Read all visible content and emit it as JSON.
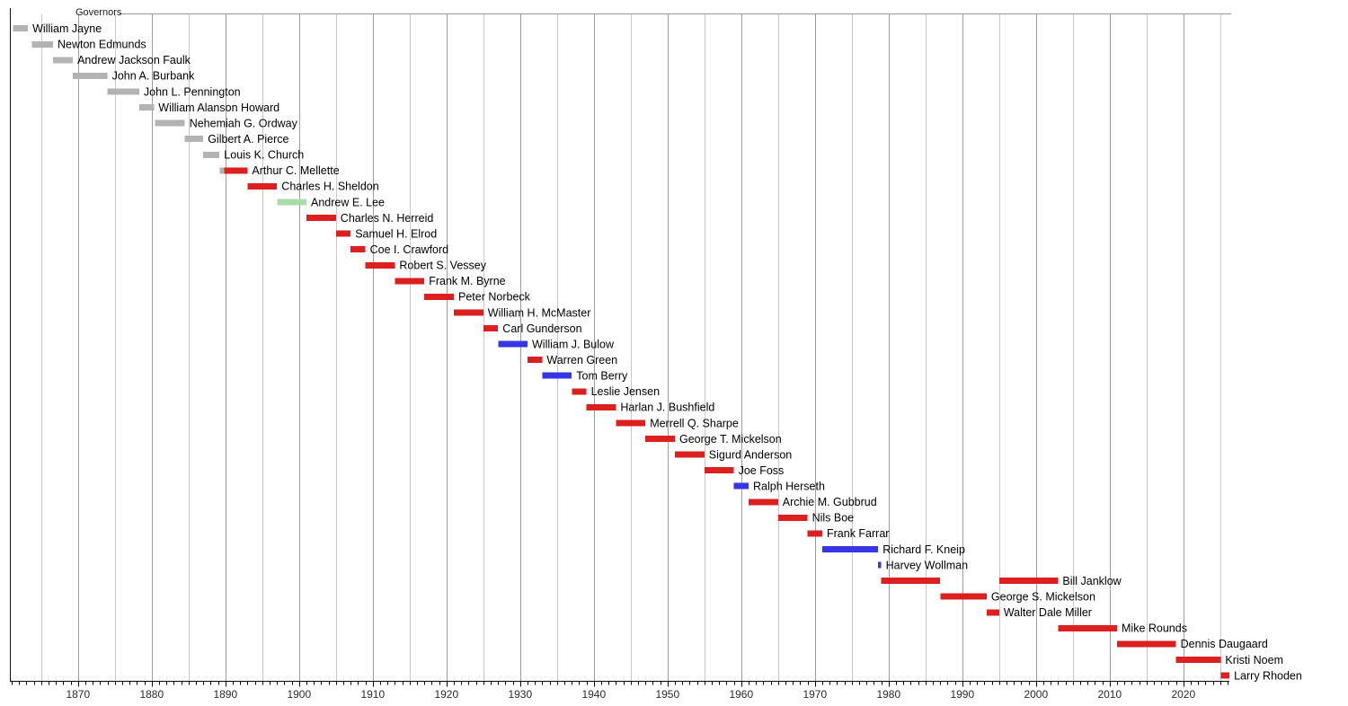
{
  "chart_data": {
    "type": "timeline",
    "title": "Governors",
    "grid": "on",
    "legend_position": "none",
    "x_axis": {
      "start": 1860.75,
      "end": 2026.25,
      "tick_interval": 1,
      "gridline_interval": 5,
      "tick_labels": [
        1870,
        1880,
        1890,
        1900,
        1910,
        1920,
        1930,
        1940,
        1950,
        1960,
        1970,
        1980,
        1990,
        2000,
        2010,
        2020
      ]
    },
    "colors": {
      "territorial": "#b3b3b3",
      "republican": "#dc2020",
      "democratic": "#3636e3",
      "populist": "#abdbab",
      "grid_minor": "#c9c9c9",
      "grid_major": "#9d9d9d",
      "top_rule": "#999999",
      "axis": "#000000",
      "axis_label_text": "#2b2b2b",
      "bar_label_text": "#000000"
    },
    "governors": [
      {
        "name": "William Jayne",
        "segments": [
          {
            "start": 1861.2,
            "end": 1863.2,
            "party": "territorial"
          }
        ]
      },
      {
        "name": "Newton Edmunds",
        "segments": [
          {
            "start": 1863.75,
            "end": 1866.6,
            "party": "territorial"
          }
        ]
      },
      {
        "name": "Andrew Jackson Faulk",
        "segments": [
          {
            "start": 1866.6,
            "end": 1869.3,
            "party": "territorial"
          }
        ]
      },
      {
        "name": "John A. Burbank",
        "segments": [
          {
            "start": 1869.3,
            "end": 1874.0,
            "party": "territorial"
          }
        ]
      },
      {
        "name": "John L. Pennington",
        "segments": [
          {
            "start": 1874.0,
            "end": 1878.3,
            "party": "territorial"
          }
        ]
      },
      {
        "name": "William Alanson Howard",
        "segments": [
          {
            "start": 1878.3,
            "end": 1880.3,
            "party": "territorial"
          }
        ]
      },
      {
        "name": "Nehemiah G. Ordway",
        "segments": [
          {
            "start": 1880.45,
            "end": 1884.5,
            "party": "territorial"
          }
        ]
      },
      {
        "name": "Gilbert A. Pierce",
        "segments": [
          {
            "start": 1884.5,
            "end": 1887.0,
            "party": "territorial"
          }
        ]
      },
      {
        "name": "Louis K. Church",
        "segments": [
          {
            "start": 1887.0,
            "end": 1889.2,
            "party": "territorial"
          }
        ]
      },
      {
        "name": "Arthur C. Mellette",
        "segments": [
          {
            "start": 1889.2,
            "end": 1889.85,
            "party": "territorial"
          },
          {
            "start": 1889.85,
            "end": 1893.0,
            "party": "republican"
          }
        ]
      },
      {
        "name": "Charles H. Sheldon",
        "segments": [
          {
            "start": 1893.0,
            "end": 1897.0,
            "party": "republican"
          }
        ]
      },
      {
        "name": "Andrew E. Lee",
        "segments": [
          {
            "start": 1897.0,
            "end": 1901.0,
            "party": "populist"
          }
        ]
      },
      {
        "name": "Charles N. Herreid",
        "segments": [
          {
            "start": 1901.0,
            "end": 1905.0,
            "party": "republican"
          }
        ]
      },
      {
        "name": "Samuel H. Elrod",
        "segments": [
          {
            "start": 1905.0,
            "end": 1907.0,
            "party": "republican"
          }
        ]
      },
      {
        "name": "Coe I. Crawford",
        "segments": [
          {
            "start": 1907.0,
            "end": 1909.0,
            "party": "republican"
          }
        ]
      },
      {
        "name": "Robert S. Vessey",
        "segments": [
          {
            "start": 1909.0,
            "end": 1913.0,
            "party": "republican"
          }
        ]
      },
      {
        "name": "Frank M. Byrne",
        "segments": [
          {
            "start": 1913.0,
            "end": 1917.0,
            "party": "republican"
          }
        ]
      },
      {
        "name": "Peter Norbeck",
        "segments": [
          {
            "start": 1917.0,
            "end": 1921.0,
            "party": "republican"
          }
        ]
      },
      {
        "name": "William H. McMaster",
        "segments": [
          {
            "start": 1921.0,
            "end": 1925.0,
            "party": "republican"
          }
        ]
      },
      {
        "name": "Carl Gunderson",
        "segments": [
          {
            "start": 1925.0,
            "end": 1927.0,
            "party": "republican"
          }
        ]
      },
      {
        "name": "William J. Bulow",
        "segments": [
          {
            "start": 1927.0,
            "end": 1931.0,
            "party": "democratic"
          }
        ]
      },
      {
        "name": "Warren Green",
        "segments": [
          {
            "start": 1931.0,
            "end": 1933.0,
            "party": "republican"
          }
        ]
      },
      {
        "name": "Tom Berry",
        "segments": [
          {
            "start": 1933.0,
            "end": 1937.0,
            "party": "democratic"
          }
        ]
      },
      {
        "name": "Leslie Jensen",
        "segments": [
          {
            "start": 1937.0,
            "end": 1939.0,
            "party": "republican"
          }
        ]
      },
      {
        "name": "Harlan J. Bushfield",
        "segments": [
          {
            "start": 1939.0,
            "end": 1943.0,
            "party": "republican"
          }
        ]
      },
      {
        "name": "Merrell Q. Sharpe",
        "segments": [
          {
            "start": 1943.0,
            "end": 1947.0,
            "party": "republican"
          }
        ]
      },
      {
        "name": "George T. Mickelson",
        "segments": [
          {
            "start": 1947.0,
            "end": 1951.0,
            "party": "republican"
          }
        ]
      },
      {
        "name": "Sigurd Anderson",
        "segments": [
          {
            "start": 1951.0,
            "end": 1955.0,
            "party": "republican"
          }
        ]
      },
      {
        "name": "Joe Foss",
        "segments": [
          {
            "start": 1955.0,
            "end": 1959.0,
            "party": "republican"
          }
        ]
      },
      {
        "name": "Ralph Herseth",
        "segments": [
          {
            "start": 1959.0,
            "end": 1961.0,
            "party": "democratic"
          }
        ]
      },
      {
        "name": "Archie M. Gubbrud",
        "segments": [
          {
            "start": 1961.0,
            "end": 1965.0,
            "party": "republican"
          }
        ]
      },
      {
        "name": "Nils Boe",
        "segments": [
          {
            "start": 1965.0,
            "end": 1969.0,
            "party": "republican"
          }
        ]
      },
      {
        "name": "Frank Farrar",
        "segments": [
          {
            "start": 1969.0,
            "end": 1971.0,
            "party": "republican"
          }
        ]
      },
      {
        "name": "Richard F. Kneip",
        "segments": [
          {
            "start": 1971.0,
            "end": 1978.58,
            "party": "democratic"
          }
        ]
      },
      {
        "name": "Harvey Wollman",
        "segments": [
          {
            "start": 1978.58,
            "end": 1979.0,
            "party": "democratic"
          }
        ]
      },
      {
        "name": "Bill Janklow",
        "segments": [
          {
            "start": 1979.0,
            "end": 1987.0,
            "party": "republican"
          },
          {
            "start": 1995.0,
            "end": 2003.0,
            "party": "republican"
          }
        ]
      },
      {
        "name": "George S. Mickelson",
        "segments": [
          {
            "start": 1987.0,
            "end": 1993.3,
            "party": "republican"
          }
        ]
      },
      {
        "name": "Walter Dale Miller",
        "segments": [
          {
            "start": 1993.3,
            "end": 1995.0,
            "party": "republican"
          }
        ]
      },
      {
        "name": "Mike Rounds",
        "segments": [
          {
            "start": 2003.0,
            "end": 2011.0,
            "party": "republican"
          }
        ]
      },
      {
        "name": "Dennis Daugaard",
        "segments": [
          {
            "start": 2011.0,
            "end": 2019.0,
            "party": "republican"
          }
        ]
      },
      {
        "name": "Kristi Noem",
        "segments": [
          {
            "start": 2019.0,
            "end": 2025.07,
            "party": "republican"
          }
        ]
      },
      {
        "name": "Larry Rhoden",
        "segments": [
          {
            "start": 2025.07,
            "end": 2026.25,
            "party": "republican"
          }
        ]
      }
    ]
  }
}
